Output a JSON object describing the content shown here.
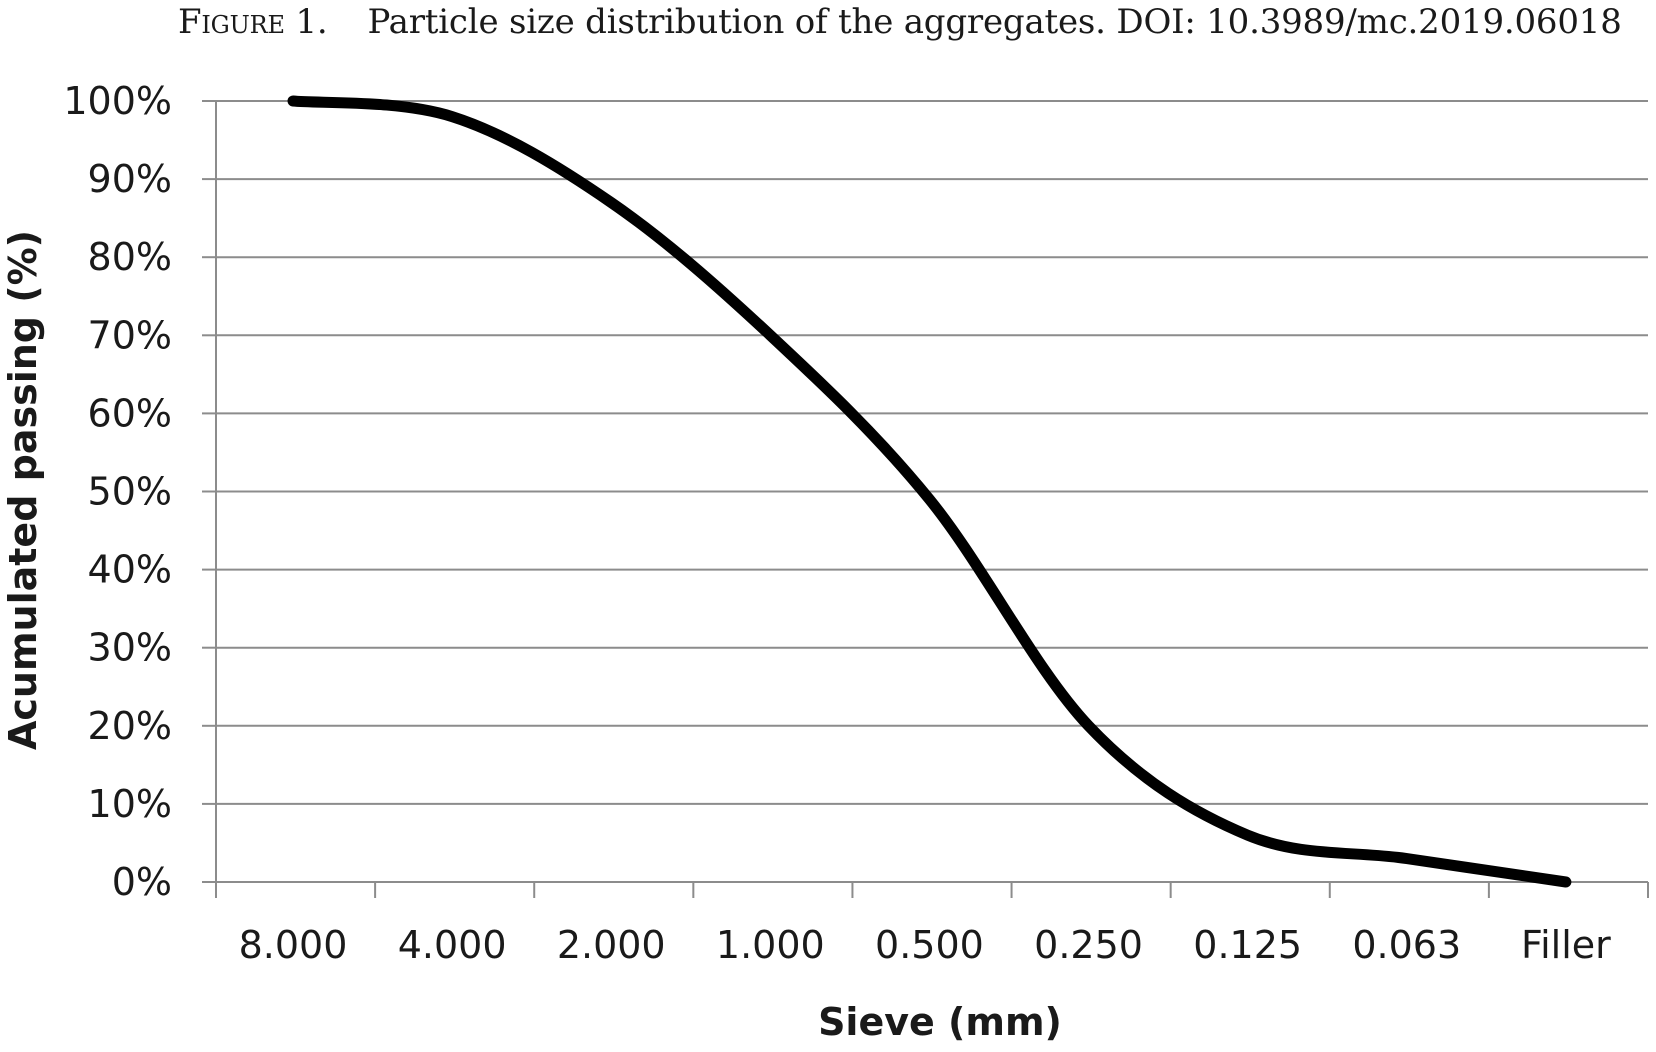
{
  "caption": {
    "label": "Figure 1.",
    "text": "Particle size distribution of the aggregates. DOI: 10.3989/mc.2019.06018"
  },
  "chart_data": {
    "type": "line",
    "categories": [
      "8.000",
      "4.000",
      "2.000",
      "1.000",
      "0.500",
      "0.250",
      "0.125",
      "0.063",
      "Filler"
    ],
    "series": [
      {
        "values": [
          100,
          98,
          87,
          70,
          49,
          20,
          6,
          3,
          0
        ]
      }
    ],
    "xlabel": "Sieve (mm)",
    "ylabel": "Acumulated passing (%)",
    "ylim": [
      0,
      100
    ],
    "yticks": [
      "0%",
      "10%",
      "20%",
      "30%",
      "40%",
      "50%",
      "60%",
      "70%",
      "80%",
      "90%",
      "100%"
    ],
    "grid": true,
    "legend": "none",
    "line_color": "#000000",
    "grid_color": "#8c8c8c"
  }
}
